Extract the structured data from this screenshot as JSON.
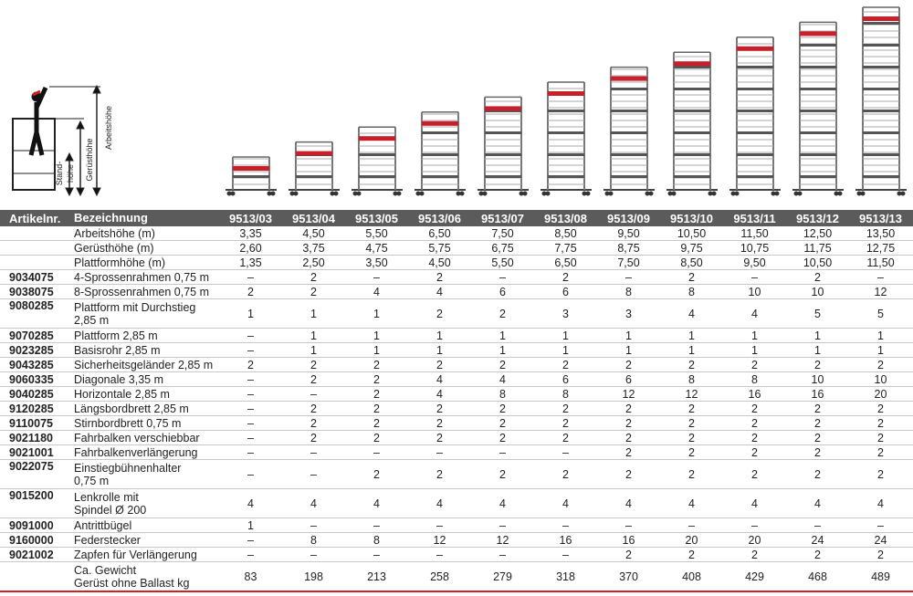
{
  "diagram": {
    "labels": {
      "work_height": "Arbeitshöhe",
      "scaffold_height": "Gerüsthöhe",
      "stand_height_1": "Stand-",
      "stand_height_2": "höhe"
    }
  },
  "table": {
    "header": [
      "Artikelnr.",
      "Bezeichnung",
      "9513/03",
      "9513/04",
      "9513/05",
      "9513/06",
      "9513/07",
      "9513/08",
      "9513/09",
      "9513/10",
      "9513/11",
      "9513/12",
      "9513/13"
    ],
    "rows": [
      {
        "name": [
          "Arbeitshöhe (m)"
        ],
        "values": [
          "3,35",
          "4,50",
          "5,50",
          "6,50",
          "7,50",
          "8,50",
          "9,50",
          "10,50",
          "11,50",
          "12,50",
          "13,50"
        ]
      },
      {
        "name": [
          "Gerüsthöhe (m)"
        ],
        "values": [
          "2,60",
          "3,75",
          "4,75",
          "5,75",
          "6,75",
          "7,75",
          "8,75",
          "9,75",
          "10,75",
          "11,75",
          "12,75"
        ]
      },
      {
        "name": [
          "Plattformhöhe (m)"
        ],
        "values": [
          "1,35",
          "2,50",
          "3,50",
          "4,50",
          "5,50",
          "6,50",
          "7,50",
          "8,50",
          "9,50",
          "10,50",
          "11,50"
        ]
      },
      {
        "article": "9034075",
        "name": [
          "4-Sprossenrahmen 0,75 m"
        ],
        "values": [
          "–",
          "2",
          "–",
          "2",
          "–",
          "2",
          "–",
          "2",
          "–",
          "2",
          "–"
        ]
      },
      {
        "article": "9038075",
        "name": [
          "8-Sprossenrahmen 0,75 m"
        ],
        "values": [
          "2",
          "2",
          "4",
          "4",
          "6",
          "6",
          "8",
          "8",
          "10",
          "10",
          "12"
        ]
      },
      {
        "article": "9080285",
        "name": [
          "Plattform mit Durchstieg",
          "2,85 m"
        ],
        "values": [
          "1",
          "1",
          "1",
          "2",
          "2",
          "3",
          "3",
          "4",
          "4",
          "5",
          "5"
        ]
      },
      {
        "article": "9070285",
        "name": [
          "Plattform 2,85 m"
        ],
        "values": [
          "–",
          "1",
          "1",
          "1",
          "1",
          "1",
          "1",
          "1",
          "1",
          "1",
          "1"
        ]
      },
      {
        "article": "9023285",
        "name": [
          "Basisrohr 2,85 m"
        ],
        "values": [
          "–",
          "1",
          "1",
          "1",
          "1",
          "1",
          "1",
          "1",
          "1",
          "1",
          "1"
        ]
      },
      {
        "article": "9043285",
        "name": [
          "Sicherheitsgeländer 2,85 m"
        ],
        "values": [
          "2",
          "2",
          "2",
          "2",
          "2",
          "2",
          "2",
          "2",
          "2",
          "2",
          "2"
        ]
      },
      {
        "article": "9060335",
        "name": [
          "Diagonale 3,35 m"
        ],
        "values": [
          "–",
          "2",
          "2",
          "4",
          "4",
          "6",
          "6",
          "8",
          "8",
          "10",
          "10"
        ]
      },
      {
        "article": "9040285",
        "name": [
          "Horizontale 2,85 m"
        ],
        "values": [
          "–",
          "–",
          "2",
          "4",
          "8",
          "8",
          "12",
          "12",
          "16",
          "16",
          "20"
        ]
      },
      {
        "article": "9120285",
        "name": [
          "Längsbordbrett 2,85 m"
        ],
        "values": [
          "–",
          "2",
          "2",
          "2",
          "2",
          "2",
          "2",
          "2",
          "2",
          "2",
          "2"
        ]
      },
      {
        "article": "9110075",
        "name": [
          "Stirnbordbrett 0,75 m"
        ],
        "values": [
          "–",
          "2",
          "2",
          "2",
          "2",
          "2",
          "2",
          "2",
          "2",
          "2",
          "2"
        ]
      },
      {
        "article": "9021180",
        "name": [
          "Fahrbalken verschiebbar"
        ],
        "values": [
          "–",
          "2",
          "2",
          "2",
          "2",
          "2",
          "2",
          "2",
          "2",
          "2",
          "2"
        ]
      },
      {
        "article": "9021001",
        "name": [
          "Fahrbalkenverlängerung"
        ],
        "values": [
          "–",
          "–",
          "–",
          "–",
          "–",
          "–",
          "2",
          "2",
          "2",
          "2",
          "2"
        ]
      },
      {
        "article": "9022075",
        "name": [
          "Einstiegbühnenhalter",
          "0,75 m"
        ],
        "values": [
          "–",
          "–",
          "2",
          "2",
          "2",
          "2",
          "2",
          "2",
          "2",
          "2",
          "2"
        ]
      },
      {
        "article": "9015200",
        "name": [
          "Lenkrolle mit",
          "Spindel Ø 200"
        ],
        "values": [
          "4",
          "4",
          "4",
          "4",
          "4",
          "4",
          "4",
          "4",
          "4",
          "4",
          "4"
        ]
      },
      {
        "article": "9091000",
        "name": [
          "Antrittbügel"
        ],
        "values": [
          "1",
          "–",
          "–",
          "–",
          "–",
          "–",
          "–",
          "–",
          "–",
          "–",
          "–"
        ]
      },
      {
        "article": "9160000",
        "name": [
          "Federstecker"
        ],
        "values": [
          "–",
          "8",
          "8",
          "12",
          "12",
          "16",
          "16",
          "20",
          "20",
          "24",
          "24"
        ]
      },
      {
        "article": "9021002",
        "name": [
          "Zapfen für Verlängerung"
        ],
        "values": [
          "–",
          "–",
          "–",
          "–",
          "–",
          "–",
          "2",
          "2",
          "2",
          "2",
          "2"
        ]
      },
      {
        "name": [
          "Ca. Gewicht",
          "Gerüst ohne Ballast kg"
        ],
        "values": [
          "83",
          "198",
          "213",
          "258",
          "279",
          "318",
          "370",
          "408",
          "429",
          "468",
          "489"
        ]
      }
    ]
  }
}
